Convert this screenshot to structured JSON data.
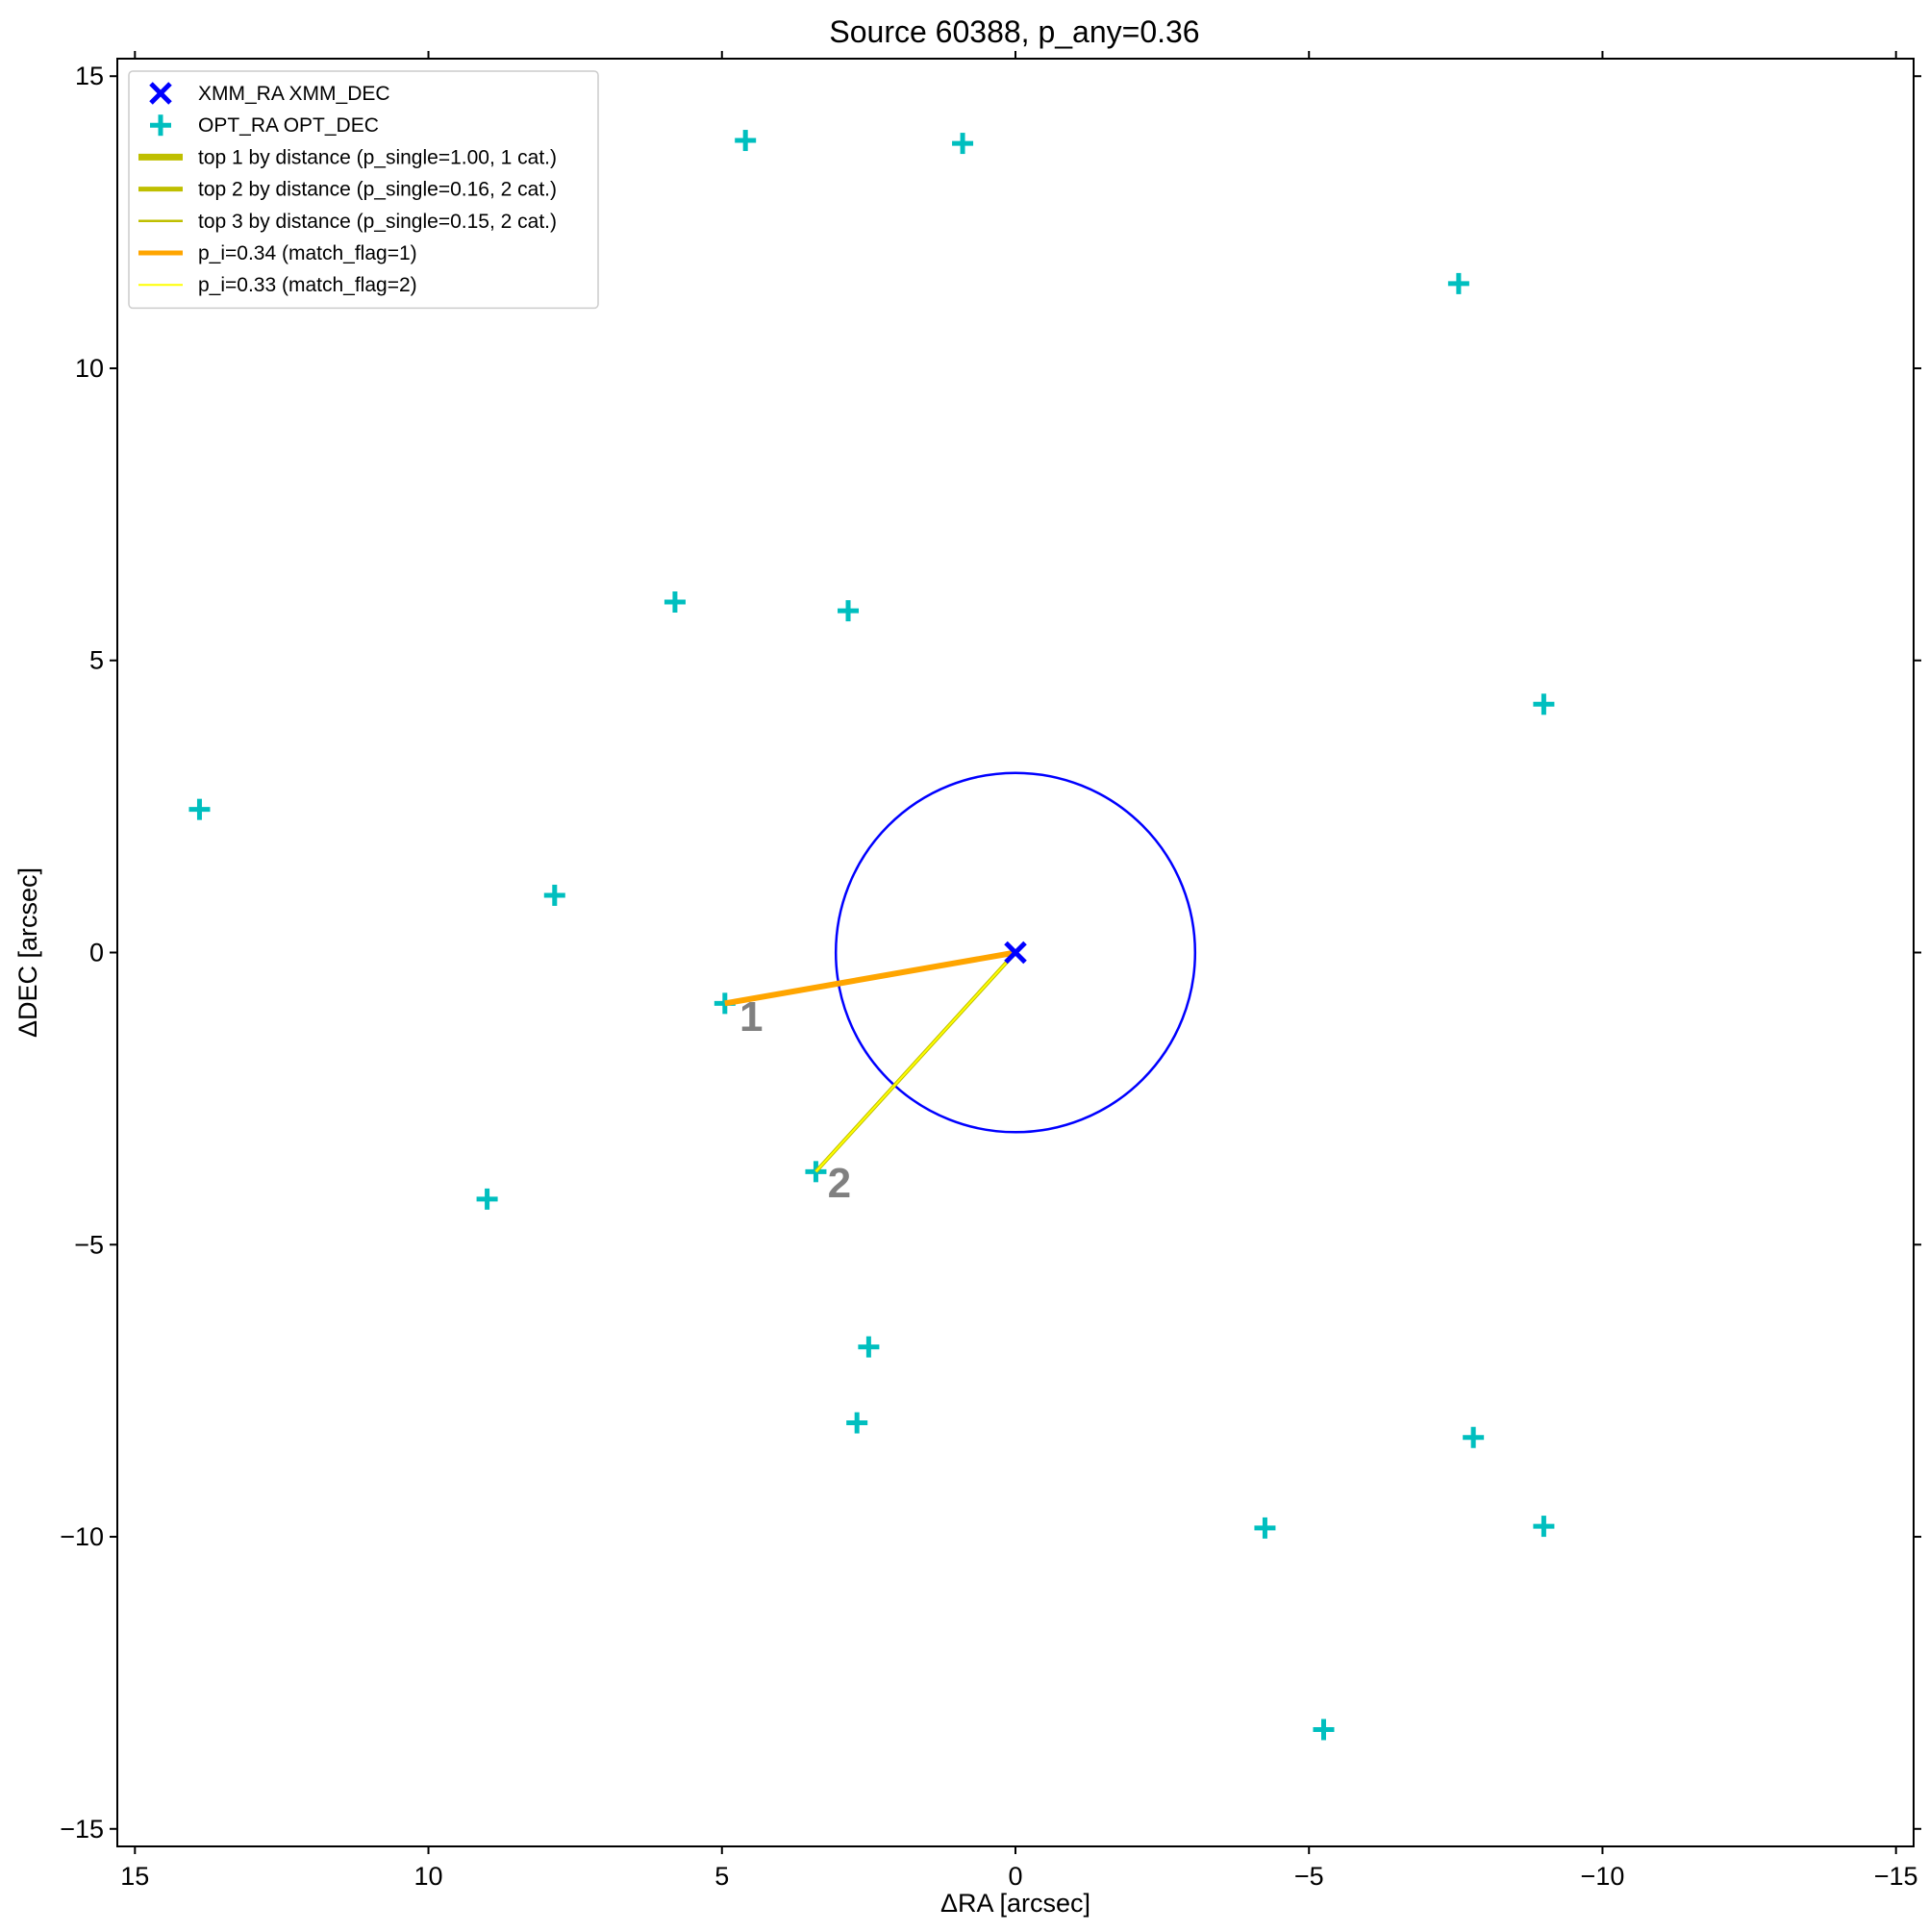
{
  "chart_data": {
    "type": "scatter",
    "title": "Source 60388, p_any=0.36",
    "xlabel": "ΔRA [arcsec]",
    "ylabel": "ΔDEC [arcsec]",
    "xlim": [
      15.3,
      -15.3
    ],
    "ylim": [
      -15.3,
      15.3
    ],
    "xticks": [
      15,
      10,
      5,
      0,
      -5,
      -10,
      -15
    ],
    "yticks": [
      15,
      10,
      5,
      0,
      -5,
      -10,
      -15
    ],
    "xtick_labels": [
      "15",
      "10",
      "5",
      "0",
      "−5",
      "−10",
      "−15"
    ],
    "ytick_labels": [
      "15",
      "10",
      "5",
      "0",
      "−5",
      "−10",
      "−15"
    ],
    "grid": false,
    "legend_position": "top-left",
    "xmm_source": {
      "name": "XMM_RA XMM_DEC",
      "x": 0,
      "y": 0,
      "color": "#0000ff",
      "error_circle_radius": 3.06
    },
    "optical_sources": {
      "name": "OPT_RA OPT_DEC",
      "color": "#00bfbf",
      "points": [
        {
          "x": 4.6,
          "y": 13.9
        },
        {
          "x": 0.9,
          "y": 13.85
        },
        {
          "x": -7.55,
          "y": 11.45
        },
        {
          "x": 5.8,
          "y": 6.0
        },
        {
          "x": 2.85,
          "y": 5.85
        },
        {
          "x": -9.0,
          "y": 4.25
        },
        {
          "x": 13.9,
          "y": 2.45
        },
        {
          "x": 7.85,
          "y": 0.98
        },
        {
          "x": 4.95,
          "y": -0.87
        },
        {
          "x": 3.4,
          "y": -3.75
        },
        {
          "x": 9.0,
          "y": -4.22
        },
        {
          "x": 2.5,
          "y": -6.75
        },
        {
          "x": 2.7,
          "y": -8.05
        },
        {
          "x": -7.8,
          "y": -8.3
        },
        {
          "x": -4.25,
          "y": -9.85
        },
        {
          "x": -9.0,
          "y": -9.82
        },
        {
          "x": -5.25,
          "y": -13.3
        }
      ]
    },
    "legend_entries": [
      {
        "label": "XMM_RA XMM_DEC",
        "marker": "x",
        "color": "#0000ff"
      },
      {
        "label": "OPT_RA OPT_DEC",
        "marker": "+",
        "color": "#00bfbf"
      },
      {
        "label": "top 1 by distance (p_single=1.00, 1 cat.)",
        "marker": "line",
        "color": "#bfbf00",
        "width": 7
      },
      {
        "label": "top 2 by distance (p_single=0.16, 2 cat.)",
        "marker": "line",
        "color": "#bfbf00",
        "width": 5
      },
      {
        "label": "top 3 by distance (p_single=0.15, 2 cat.)",
        "marker": "line",
        "color": "#bfbf00",
        "width": 2.5
      },
      {
        "label": "p_i=0.34 (match_flag=1)",
        "marker": "line",
        "color": "#ffa500",
        "width": 5
      },
      {
        "label": "p_i=0.33 (match_flag=2)",
        "marker": "line",
        "color": "#ffff00",
        "width": 2
      }
    ],
    "match_lines": [
      {
        "x0": 0,
        "y0": 0,
        "x1": 4.95,
        "y1": -0.87,
        "color": "#bfbf00",
        "width": 3
      },
      {
        "x0": 0,
        "y0": 0,
        "x1": 4.95,
        "y1": -0.87,
        "color": "#ffa500",
        "width": 6
      },
      {
        "x0": 0,
        "y0": 0,
        "x1": 3.4,
        "y1": -3.75,
        "color": "#bfbf00",
        "width": 4
      },
      {
        "x0": 0,
        "y0": 0,
        "x1": 3.4,
        "y1": -3.75,
        "color": "#ffff00",
        "width": 2
      }
    ],
    "annotations": [
      {
        "text": "1",
        "x": 4.5,
        "y": -1.15
      },
      {
        "text": "2",
        "x": 3.0,
        "y": -4.0
      }
    ]
  }
}
